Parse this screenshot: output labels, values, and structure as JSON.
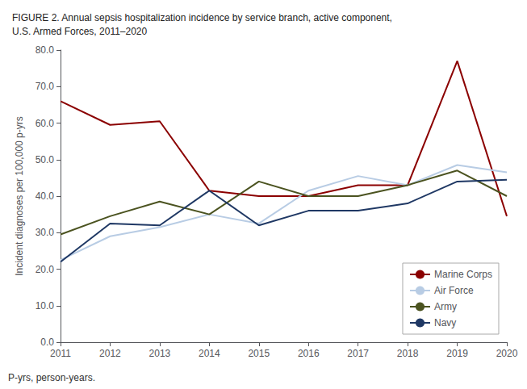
{
  "chart_data": {
    "type": "line",
    "title": "FIGURE 2. Annual sepsis hospitalization incidence by service branch, active component,\nU.S. Armed Forces, 2011–2020",
    "ylabel": "Incident diagnoses per 100,000 p-yrs",
    "annotations": [
      "P-yrs, person-years."
    ],
    "x": [
      2011,
      2012,
      2013,
      2014,
      2015,
      2016,
      2017,
      2018,
      2019,
      2020
    ],
    "series": [
      {
        "name": "Marine Corps",
        "color": "#8B0000",
        "values": [
          66.0,
          59.5,
          60.5,
          41.5,
          40.0,
          40.0,
          43.0,
          43.0,
          77.0,
          34.5
        ]
      },
      {
        "name": "Air Force",
        "color": "#b8cce4",
        "values": [
          22.5,
          29.0,
          31.5,
          35.0,
          32.5,
          41.5,
          45.5,
          43.0,
          48.5,
          46.5
        ]
      },
      {
        "name": "Army",
        "color": "#4B5320",
        "values": [
          29.5,
          34.5,
          38.5,
          35.0,
          44.0,
          40.0,
          40.0,
          43.0,
          47.0,
          40.0
        ]
      },
      {
        "name": "Navy",
        "color": "#1F3864",
        "values": [
          22.0,
          32.5,
          32.0,
          41.5,
          32.0,
          36.0,
          36.0,
          38.0,
          44.0,
          44.5
        ]
      }
    ],
    "xlim": [
      2011,
      2020
    ],
    "xticks": [
      2011,
      2012,
      2013,
      2014,
      2015,
      2016,
      2017,
      2018,
      2019,
      2020
    ],
    "ylim": [
      0,
      80
    ],
    "yticks": [
      {
        "value": 0,
        "label": "0.0"
      },
      {
        "value": 10,
        "label": "10.0"
      },
      {
        "value": 20,
        "label": "20.0"
      },
      {
        "value": 30,
        "label": "30.0"
      },
      {
        "value": 40,
        "label": "40.0"
      },
      {
        "value": 50,
        "label": "50.0"
      },
      {
        "value": 60,
        "label": "60.0"
      },
      {
        "value": 70,
        "label": "70.0"
      },
      {
        "value": 80,
        "label": "80.0"
      }
    ],
    "grid": false,
    "legend": "lower right",
    "marker": "none"
  }
}
